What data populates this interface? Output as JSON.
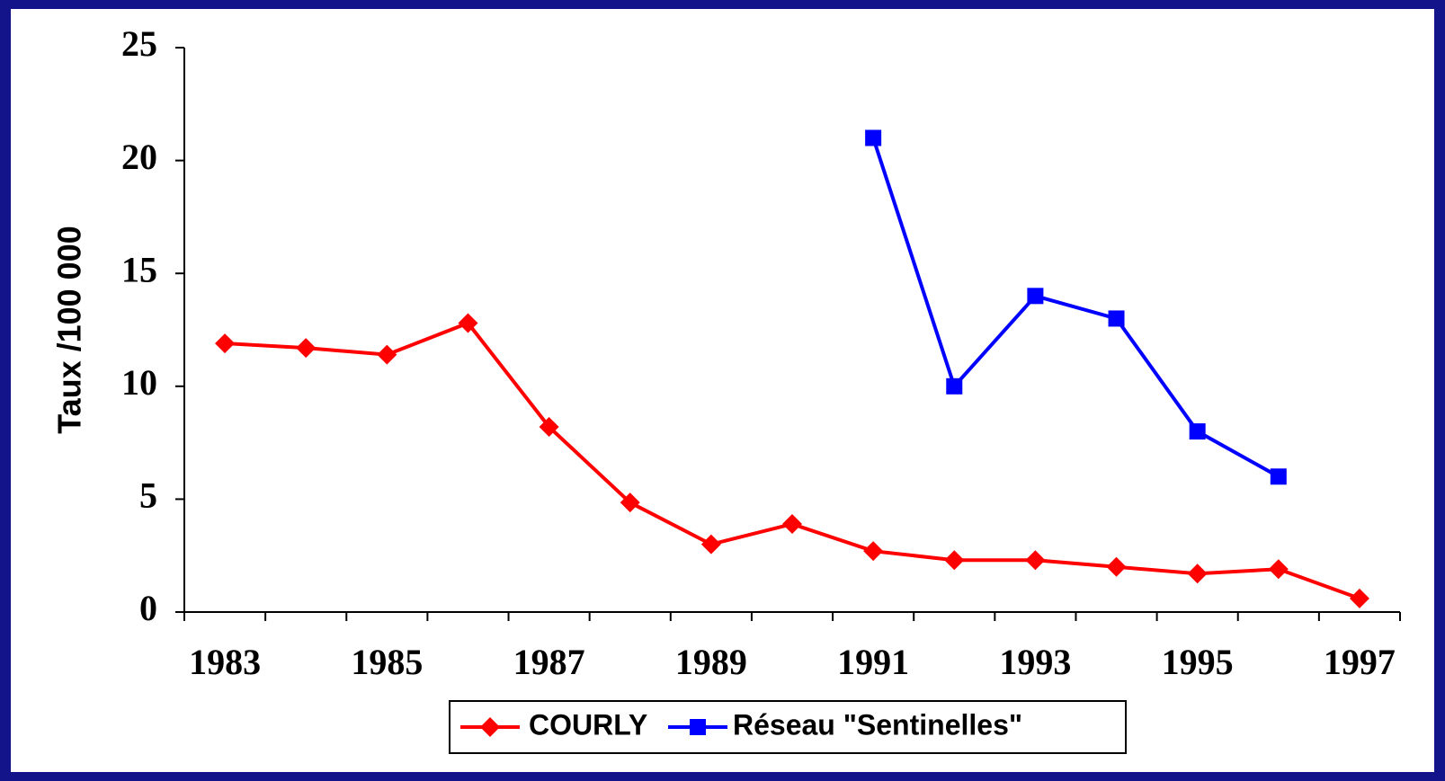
{
  "chart_data": {
    "type": "line",
    "ylabel": "Taux /100 000",
    "categories": [
      "1983",
      null,
      "1985",
      null,
      "1987",
      null,
      "1989",
      null,
      "1991",
      null,
      "1993",
      null,
      "1995",
      null,
      "1997"
    ],
    "series": [
      {
        "name": "COURLY",
        "color": "#ff0000",
        "marker": "diamond",
        "values": [
          11.9,
          11.7,
          11.4,
          12.8,
          8.2,
          4.85,
          3.0,
          3.9,
          2.7,
          2.3,
          2.3,
          2.0,
          1.7,
          1.9,
          0.6
        ]
      },
      {
        "name": "Réseau \"Sentinelles\"",
        "color": "#0000ff",
        "marker": "square",
        "values": [
          null,
          null,
          null,
          null,
          null,
          null,
          null,
          null,
          21,
          10,
          14,
          13,
          8,
          6,
          null
        ]
      }
    ],
    "ylim": [
      0,
      25
    ],
    "yticks": [
      0,
      5,
      10,
      15,
      20,
      25
    ],
    "legend": "bottom"
  }
}
